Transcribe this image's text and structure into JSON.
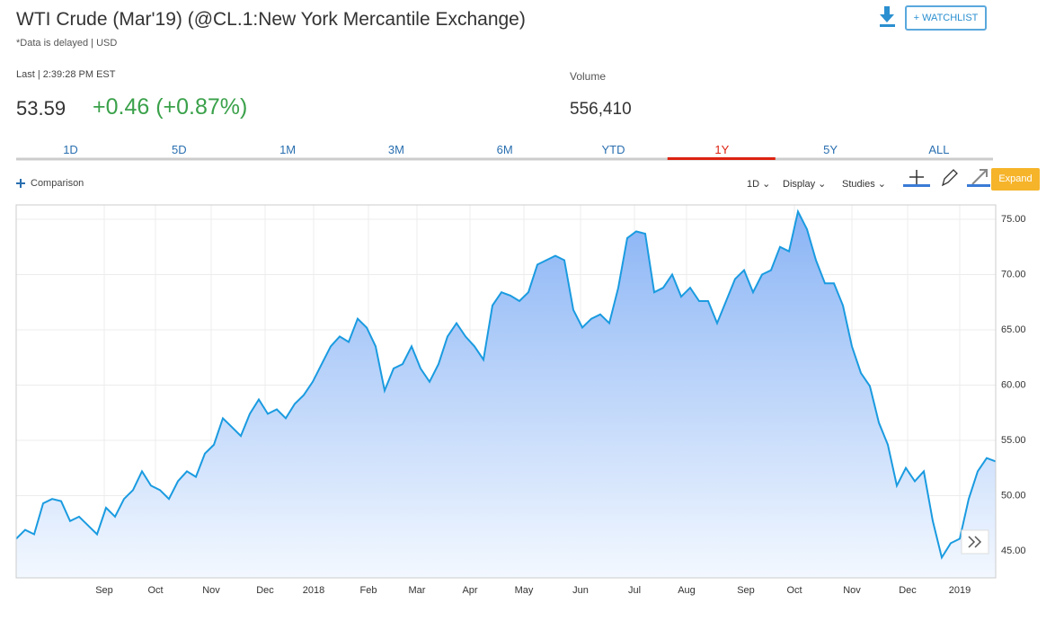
{
  "header": {
    "title": "WTI Crude (Mar'19) (@CL.1:New York Mercantile Exchange)",
    "subtitle": "*Data is delayed | USD",
    "last_label": "Last | 2:39:28 PM EST",
    "price": "53.59",
    "change": "+0.46 (+0.87%)",
    "volume_label": "Volume",
    "volume": "556,410",
    "watchlist": "+ WATCHLIST"
  },
  "tabs": {
    "items": [
      "1D",
      "5D",
      "1M",
      "3M",
      "6M",
      "YTD",
      "1Y",
      "5Y",
      "ALL"
    ],
    "active_index": 6
  },
  "toolbar": {
    "comparison": "Comparison",
    "interval": "1D",
    "display": "Display",
    "studies": "Studies",
    "expand": "Expand"
  },
  "chart_data": {
    "type": "area",
    "color": "#1a9be0",
    "values": [
      46.1,
      46.9,
      46.5,
      49.3,
      49.7,
      49.5,
      47.7,
      48.1,
      47.3,
      46.5,
      48.9,
      48.1,
      49.7,
      50.5,
      52.2,
      50.9,
      50.5,
      49.7,
      51.3,
      52.2,
      51.7,
      53.8,
      54.6,
      57.0,
      56.2,
      55.4,
      57.4,
      58.7,
      57.4,
      57.8,
      57.0,
      58.3,
      59.1,
      60.3,
      61.9,
      63.5,
      64.4,
      63.9,
      66.0,
      65.2,
      63.5,
      59.5,
      61.5,
      61.9,
      63.5,
      61.5,
      60.3,
      61.9,
      64.4,
      65.6,
      64.4,
      63.5,
      62.3,
      67.2,
      68.4,
      68.1,
      67.6,
      68.4,
      70.9,
      71.3,
      71.7,
      71.3,
      66.8,
      65.2,
      66.0,
      66.4,
      65.6,
      68.8,
      73.3,
      73.9,
      73.7,
      68.4,
      68.8,
      70.0,
      68.0,
      68.8,
      67.6,
      67.6,
      65.6,
      67.6,
      69.6,
      70.4,
      68.4,
      70.0,
      70.4,
      72.5,
      72.1,
      75.7,
      74.1,
      71.3,
      69.2,
      69.2,
      67.2,
      63.5,
      61.1,
      59.9,
      56.6,
      54.6,
      50.9,
      52.5,
      51.3,
      52.2,
      47.7,
      44.4,
      45.7,
      46.1,
      49.7,
      52.2,
      53.4,
      53.1
    ],
    "xlim": [
      0,
      109
    ],
    "xticks": [
      {
        "value": 9.8,
        "label": "Sep"
      },
      {
        "value": 15.5,
        "label": "Oct"
      },
      {
        "value": 21.7,
        "label": "Nov"
      },
      {
        "value": 27.7,
        "label": "Dec"
      },
      {
        "value": 33.1,
        "label": "2018"
      },
      {
        "value": 39.2,
        "label": "Feb"
      },
      {
        "value": 44.6,
        "label": "Mar"
      },
      {
        "value": 50.5,
        "label": "Apr"
      },
      {
        "value": 56.5,
        "label": "May"
      },
      {
        "value": 62.8,
        "label": "Jun"
      },
      {
        "value": 68.8,
        "label": "Jul"
      },
      {
        "value": 74.6,
        "label": "Aug"
      },
      {
        "value": 81.2,
        "label": "Sep"
      },
      {
        "value": 86.6,
        "label": "Oct"
      },
      {
        "value": 93.0,
        "label": "Nov"
      },
      {
        "value": 99.2,
        "label": "Dec"
      },
      {
        "value": 105.0,
        "label": "2019"
      }
    ],
    "ylim": [
      42.56,
      76.3
    ],
    "yticks": [
      {
        "value": 45,
        "label": "45.00"
      },
      {
        "value": 50,
        "label": "50.00"
      },
      {
        "value": 55,
        "label": "55.00"
      },
      {
        "value": 60,
        "label": "60.00"
      },
      {
        "value": 65,
        "label": "65.00"
      },
      {
        "value": 70,
        "label": "70.00"
      },
      {
        "value": 75,
        "label": "75.00"
      }
    ],
    "grid": true
  }
}
